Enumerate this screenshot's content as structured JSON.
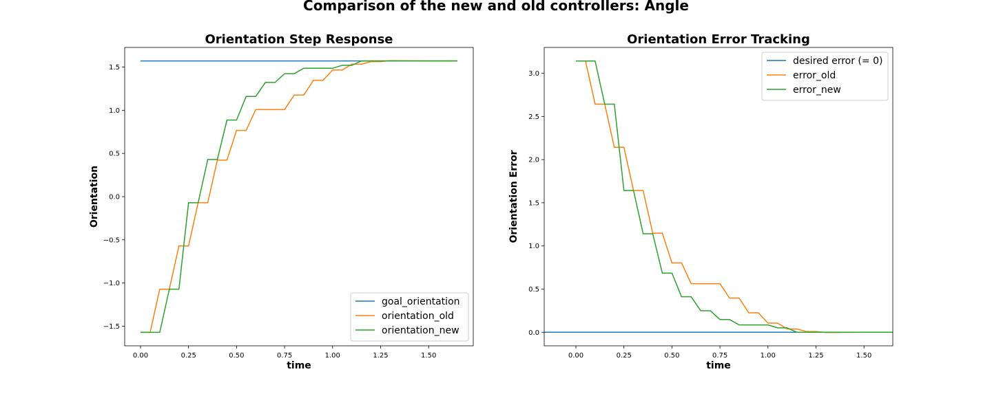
{
  "suptitle": "Comparison of the new and old controllers: Angle",
  "colors": {
    "blue": "#1f77b4",
    "orange": "#ff7f0e",
    "green": "#2ca02c"
  },
  "chart_data": [
    {
      "type": "line",
      "title": "Orientation Step Response",
      "xlabel": "time",
      "ylabel": "Orientation",
      "xlim": [
        -0.0825,
        1.7325
      ],
      "ylim": [
        -1.727,
        1.727
      ],
      "xticks": [
        0.0,
        0.25,
        0.5,
        0.75,
        1.0,
        1.25,
        1.5
      ],
      "xtick_labels": [
        "0.00",
        "0.25",
        "0.50",
        "0.75",
        "1.00",
        "1.25",
        "1.50"
      ],
      "yticks": [
        -1.5,
        -1.0,
        -0.5,
        0.0,
        0.5,
        1.0,
        1.5
      ],
      "ytick_labels": [
        "−1.5",
        "−1.0",
        "−0.5",
        "0.0",
        "0.5",
        "1.0",
        "1.5"
      ],
      "legend_position": "lower-right",
      "series": [
        {
          "name": "goal_orientation",
          "color": "#1f77b4",
          "x": [
            0.0,
            1.65
          ],
          "y": [
            1.5708,
            1.5708
          ]
        },
        {
          "name": "orientation_old",
          "color": "#ff7f0e",
          "x": [
            0.0,
            0.05,
            0.1,
            0.15,
            0.2,
            0.25,
            0.3,
            0.35,
            0.4,
            0.45,
            0.5,
            0.55,
            0.6,
            0.65,
            0.7,
            0.75,
            0.8,
            0.85,
            0.9,
            0.95,
            1.0,
            1.05,
            1.1,
            1.15,
            1.2,
            1.25,
            1.3,
            1.35,
            1.4,
            1.45,
            1.5,
            1.55,
            1.6,
            1.65
          ],
          "y": [
            -1.571,
            -1.571,
            -1.071,
            -1.071,
            -0.571,
            -0.571,
            -0.071,
            -0.071,
            0.423,
            0.423,
            0.767,
            0.767,
            1.008,
            1.008,
            1.008,
            1.008,
            1.176,
            1.176,
            1.346,
            1.346,
            1.465,
            1.465,
            1.533,
            1.533,
            1.563,
            1.563,
            1.574,
            1.574,
            1.572,
            1.572,
            1.571,
            1.571,
            1.571,
            1.571
          ]
        },
        {
          "name": "orientation_new",
          "color": "#2ca02c",
          "x": [
            0.0,
            0.05,
            0.1,
            0.15,
            0.2,
            0.25,
            0.3,
            0.35,
            0.4,
            0.45,
            0.5,
            0.55,
            0.6,
            0.65,
            0.7,
            0.75,
            0.8,
            0.85,
            0.9,
            0.95,
            1.0,
            1.05,
            1.1,
            1.15,
            1.2,
            1.25,
            1.3,
            1.35,
            1.4,
            1.45,
            1.5,
            1.55,
            1.6,
            1.65
          ],
          "y": [
            -1.571,
            -1.571,
            -1.571,
            -1.071,
            -1.071,
            -0.071,
            -0.071,
            0.43,
            0.43,
            0.886,
            0.886,
            1.16,
            1.16,
            1.322,
            1.322,
            1.423,
            1.423,
            1.486,
            1.486,
            1.486,
            1.486,
            1.52,
            1.52,
            1.571,
            1.571,
            1.571,
            1.571,
            1.571,
            1.571,
            1.571,
            1.571,
            1.571,
            1.571,
            1.571
          ]
        }
      ]
    },
    {
      "type": "line",
      "title": "Orientation Error Tracking",
      "xlabel": "time",
      "ylabel": "Orientation Error",
      "xlim": [
        -0.165,
        1.65
      ],
      "ylim": [
        -0.157,
        3.299
      ],
      "xticks": [
        0.0,
        0.25,
        0.5,
        0.75,
        1.0,
        1.25,
        1.5
      ],
      "xtick_labels": [
        "0.00",
        "0.25",
        "0.50",
        "0.75",
        "1.00",
        "1.25",
        "1.50"
      ],
      "yticks": [
        0.0,
        0.5,
        1.0,
        1.5,
        2.0,
        2.5,
        3.0
      ],
      "ytick_labels": [
        "0.0",
        "0.5",
        "1.0",
        "1.5",
        "2.0",
        "2.5",
        "3.0"
      ],
      "legend_position": "top-right",
      "series": [
        {
          "name": "desired error (= 0)",
          "color": "#1f77b4",
          "x": [
            -0.165,
            1.65
          ],
          "y": [
            0.0,
            0.0
          ]
        },
        {
          "name": "error_old",
          "color": "#ff7f0e",
          "x": [
            0.0,
            0.05,
            0.1,
            0.15,
            0.2,
            0.25,
            0.3,
            0.35,
            0.4,
            0.45,
            0.5,
            0.55,
            0.6,
            0.65,
            0.7,
            0.75,
            0.8,
            0.85,
            0.9,
            0.95,
            1.0,
            1.05,
            1.1,
            1.15,
            1.2,
            1.25,
            1.3,
            1.35,
            1.4,
            1.45,
            1.5,
            1.55,
            1.6,
            1.65
          ],
          "y": [
            3.142,
            3.142,
            2.642,
            2.642,
            2.142,
            2.142,
            1.642,
            1.642,
            1.148,
            1.148,
            0.804,
            0.804,
            0.563,
            0.563,
            0.563,
            0.563,
            0.395,
            0.395,
            0.225,
            0.225,
            0.106,
            0.106,
            0.038,
            0.038,
            0.008,
            0.008,
            -0.003,
            -0.003,
            -0.001,
            -0.001,
            0.0,
            0.0,
            0.0,
            0.0
          ]
        },
        {
          "name": "error_new",
          "color": "#2ca02c",
          "x": [
            0.0,
            0.05,
            0.1,
            0.15,
            0.2,
            0.25,
            0.3,
            0.35,
            0.4,
            0.45,
            0.5,
            0.55,
            0.6,
            0.65,
            0.7,
            0.75,
            0.8,
            0.85,
            0.9,
            0.95,
            1.0,
            1.05,
            1.1,
            1.15,
            1.2,
            1.25,
            1.3,
            1.35,
            1.4,
            1.45,
            1.5,
            1.55,
            1.6,
            1.65
          ],
          "y": [
            3.142,
            3.142,
            3.142,
            2.642,
            2.642,
            1.642,
            1.642,
            1.141,
            1.141,
            0.685,
            0.685,
            0.411,
            0.411,
            0.249,
            0.249,
            0.148,
            0.148,
            0.085,
            0.085,
            0.085,
            0.085,
            0.051,
            0.051,
            0.0,
            0.0,
            0.0,
            0.0,
            0.0,
            0.0,
            0.0,
            0.0,
            0.0,
            0.0,
            0.0
          ]
        }
      ]
    }
  ]
}
